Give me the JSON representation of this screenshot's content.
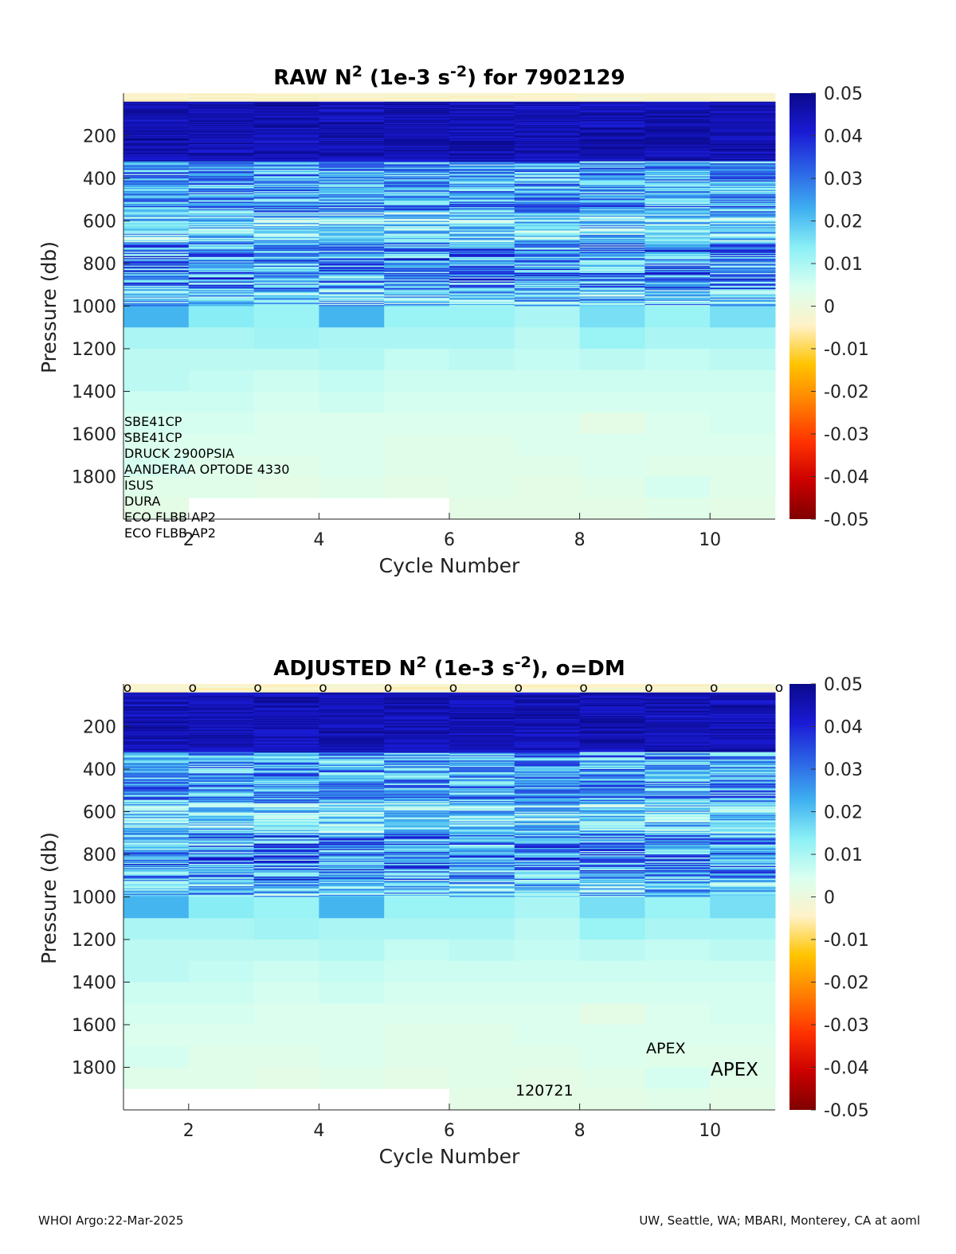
{
  "footer": {
    "left": "WHOI Argo:22-Mar-2025",
    "right": "UW, Seattle, WA; MBARI, Monterey, CA at aoml"
  },
  "colorbar": {
    "colors": [
      "#7f0000",
      "#cc0000",
      "#ff3300",
      "#ff8000",
      "#ffc400",
      "#fff2c8",
      "#d9fff0",
      "#8cf0f6",
      "#3fb0f0",
      "#2c63e6",
      "#1a1ad4",
      "#0a0a8c"
    ],
    "ticks": [
      "0.05",
      "0.04",
      "0.03",
      "0.02",
      "0.01",
      "0",
      "-0.01",
      "-0.02",
      "-0.03",
      "-0.04",
      "-0.05"
    ]
  },
  "chart_data": [
    {
      "type": "heatmap",
      "title_parts": [
        "RAW N",
        "2",
        " (1e-3 s",
        "-2",
        ") for 7902129"
      ],
      "xlabel": "Cycle Number",
      "ylabel": "Pressure (db)",
      "x_ticks": [
        "2",
        "4",
        "6",
        "8",
        "10"
      ],
      "y_ticks": [
        "200",
        "400",
        "600",
        "800",
        "1000",
        "1200",
        "1400",
        "1600",
        "1800"
      ],
      "xlim": [
        1,
        11
      ],
      "ylim": [
        0,
        2000
      ],
      "y_reversed": true,
      "color_range": [
        -0.05,
        0.05
      ],
      "cycles": [
        1,
        2,
        3,
        4,
        5,
        6,
        7,
        8,
        9,
        10
      ],
      "max_pressure": [
        2000,
        1900,
        1900,
        1900,
        1900,
        2000,
        2000,
        2000,
        2000,
        2000
      ],
      "deep_bands_db": [
        1000,
        1100,
        1200,
        1300,
        1400,
        1500,
        1600,
        1700,
        1800,
        1900,
        2000
      ],
      "deep_values": [
        [
          0.022,
          0.01,
          0.008,
          0.008,
          0.006,
          0.005,
          0.004,
          0.005,
          0.003,
          0.002
        ],
        [
          0.014,
          0.01,
          0.008,
          0.007,
          0.006,
          0.005,
          0.004,
          0.003,
          0.003,
          null
        ],
        [
          0.012,
          0.011,
          0.008,
          0.006,
          0.005,
          0.004,
          0.004,
          0.003,
          0.002,
          null
        ],
        [
          0.022,
          0.01,
          0.009,
          0.007,
          0.006,
          0.004,
          0.004,
          0.004,
          0.003,
          null
        ],
        [
          0.012,
          0.01,
          0.007,
          0.006,
          0.005,
          0.004,
          0.003,
          0.003,
          0.002,
          null
        ],
        [
          0.012,
          0.01,
          0.008,
          0.006,
          0.005,
          0.004,
          0.003,
          0.003,
          0.003,
          0.002
        ],
        [
          0.01,
          0.008,
          0.007,
          0.006,
          0.005,
          0.004,
          0.004,
          0.003,
          0.002,
          0.002
        ],
        [
          0.016,
          0.012,
          0.008,
          0.006,
          0.005,
          0.002,
          0.004,
          0.004,
          0.003,
          0.002
        ],
        [
          0.012,
          0.01,
          0.007,
          0.006,
          0.005,
          0.004,
          0.004,
          0.003,
          0.005,
          0.003
        ],
        [
          0.016,
          0.01,
          0.008,
          0.006,
          0.005,
          0.005,
          0.004,
          0.003,
          0.003,
          0.002
        ]
      ],
      "sensors": [
        "SBE41CP",
        "SBE41CP",
        "DRUCK 2900PSIA",
        "AANDERAA OPTODE 4330",
        "ISUS",
        "DURA",
        "ECO FLBB AP2",
        "ECO FLBB AP2"
      ]
    },
    {
      "type": "heatmap",
      "title_parts": [
        "ADJUSTED N",
        "2",
        " (1e-3 s",
        "-2",
        "), o=DM"
      ],
      "xlabel": "Cycle Number",
      "ylabel": "Pressure (db)",
      "x_ticks": [
        "2",
        "4",
        "6",
        "8",
        "10"
      ],
      "y_ticks": [
        "200",
        "400",
        "600",
        "800",
        "1000",
        "1200",
        "1400",
        "1600",
        "1800"
      ],
      "xlim": [
        1,
        11
      ],
      "ylim": [
        0,
        2000
      ],
      "y_reversed": true,
      "color_range": [
        -0.05,
        0.05
      ],
      "cycles": [
        1,
        2,
        3,
        4,
        5,
        6,
        7,
        8,
        9,
        10
      ],
      "max_pressure": [
        1900,
        1900,
        1900,
        1900,
        1900,
        2000,
        2000,
        2000,
        2000,
        2000
      ],
      "deep_bands_db": [
        1000,
        1100,
        1200,
        1300,
        1400,
        1500,
        1600,
        1700,
        1800,
        1900,
        2000
      ],
      "deep_values": [
        [
          0.022,
          0.01,
          0.008,
          0.008,
          0.006,
          0.005,
          0.004,
          0.005,
          0.003,
          null
        ],
        [
          0.014,
          0.01,
          0.008,
          0.007,
          0.006,
          0.005,
          0.004,
          0.003,
          0.003,
          null
        ],
        [
          0.012,
          0.011,
          0.008,
          0.006,
          0.005,
          0.004,
          0.004,
          0.003,
          0.002,
          null
        ],
        [
          0.022,
          0.01,
          0.009,
          0.007,
          0.006,
          0.004,
          0.004,
          0.004,
          0.003,
          null
        ],
        [
          0.012,
          0.01,
          0.007,
          0.006,
          0.005,
          0.004,
          0.003,
          0.003,
          0.002,
          null
        ],
        [
          0.012,
          0.01,
          0.008,
          0.006,
          0.005,
          0.004,
          0.003,
          0.003,
          0.003,
          0.002
        ],
        [
          0.01,
          0.008,
          0.007,
          0.006,
          0.005,
          0.004,
          0.004,
          0.003,
          0.002,
          0.002
        ],
        [
          0.016,
          0.012,
          0.008,
          0.006,
          0.005,
          0.002,
          0.004,
          0.004,
          0.003,
          0.002
        ],
        [
          0.012,
          0.01,
          0.007,
          0.006,
          0.005,
          0.004,
          0.004,
          0.003,
          0.005,
          0.003
        ],
        [
          0.016,
          0.01,
          0.008,
          0.006,
          0.005,
          0.005,
          0.004,
          0.003,
          0.003,
          0.002
        ]
      ],
      "dm_marker": "o",
      "dm_cycles": [
        1,
        2,
        3,
        4,
        5,
        6,
        7,
        8,
        9,
        10,
        11
      ],
      "annotations": [
        "APEX",
        "APEX",
        "120721"
      ]
    }
  ]
}
